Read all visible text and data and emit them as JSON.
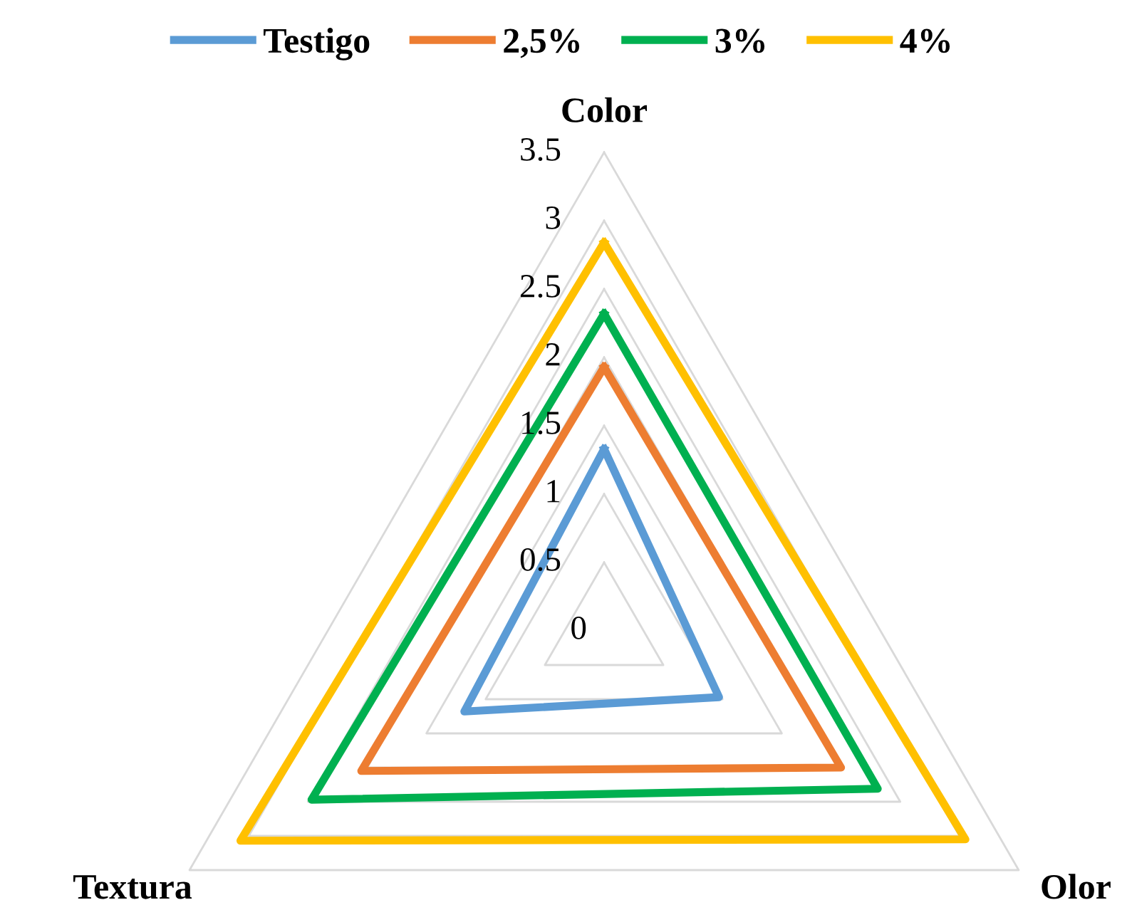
{
  "chart_data": {
    "type": "radar",
    "categories": [
      "Color",
      "Olor",
      "Textura"
    ],
    "series": [
      {
        "name": "Testigo",
        "color": "#5b9bd5",
        "values": [
          1.33,
          0.97,
          1.18
        ]
      },
      {
        "name": "2,5%",
        "color": "#ed7d31",
        "values": [
          1.93,
          2.0,
          2.05
        ]
      },
      {
        "name": "3%",
        "color": "#00b050",
        "values": [
          2.32,
          2.31,
          2.47
        ]
      },
      {
        "name": "4%",
        "color": "#ffc000",
        "values": [
          2.84,
          3.05,
          3.07
        ]
      }
    ],
    "ylim": [
      0,
      3.5
    ],
    "yticks": [
      0,
      0.5,
      1,
      1.5,
      2,
      2.5,
      3,
      3.5
    ],
    "grid": true,
    "legend": "top",
    "marker": "none",
    "line_style": "solid"
  }
}
